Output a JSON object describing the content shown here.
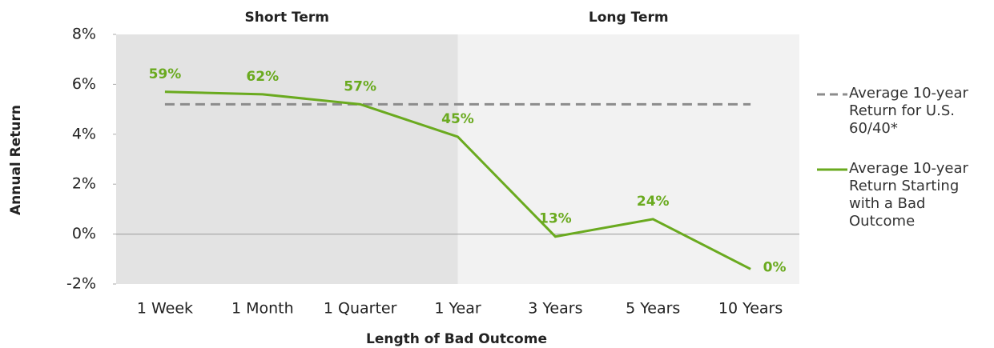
{
  "chart_data": {
    "type": "line",
    "x_label": "Length of Bad Outcome",
    "y_label": "Annual Return",
    "regions": [
      {
        "label": "Short Term",
        "color": "#e3e3e3"
      },
      {
        "label": "Long Term",
        "color": "#f2f2f2"
      }
    ],
    "categories": [
      "1 Week",
      "1 Month",
      "1 Quarter",
      "1 Year",
      "3 Years",
      "5 Years",
      "10 Years"
    ],
    "series": [
      {
        "name": "Average 10-year Return for U.S. 60/40*",
        "color": "#8c8c8c",
        "dashed": true,
        "values": [
          5.2,
          5.2,
          5.2,
          5.2,
          5.2,
          5.2,
          5.2
        ]
      },
      {
        "name": "Average 10-year Return Starting with a Bad Outcome",
        "color": "#6aaa1f",
        "dashed": false,
        "values": [
          5.7,
          5.6,
          5.2,
          3.9,
          -0.1,
          0.6,
          -1.4
        ],
        "annotations": [
          "59%",
          "62%",
          "57%",
          "45%",
          "13%",
          "24%",
          "0%"
        ]
      }
    ],
    "ylim": [
      -2,
      8
    ],
    "yticks": [
      {
        "value": -2,
        "label": "-2%"
      },
      {
        "value": 0,
        "label": "0%"
      },
      {
        "value": 2,
        "label": "2%"
      },
      {
        "value": 4,
        "label": "4%"
      },
      {
        "value": 6,
        "label": "6%"
      },
      {
        "value": 8,
        "label": "8%"
      }
    ]
  }
}
